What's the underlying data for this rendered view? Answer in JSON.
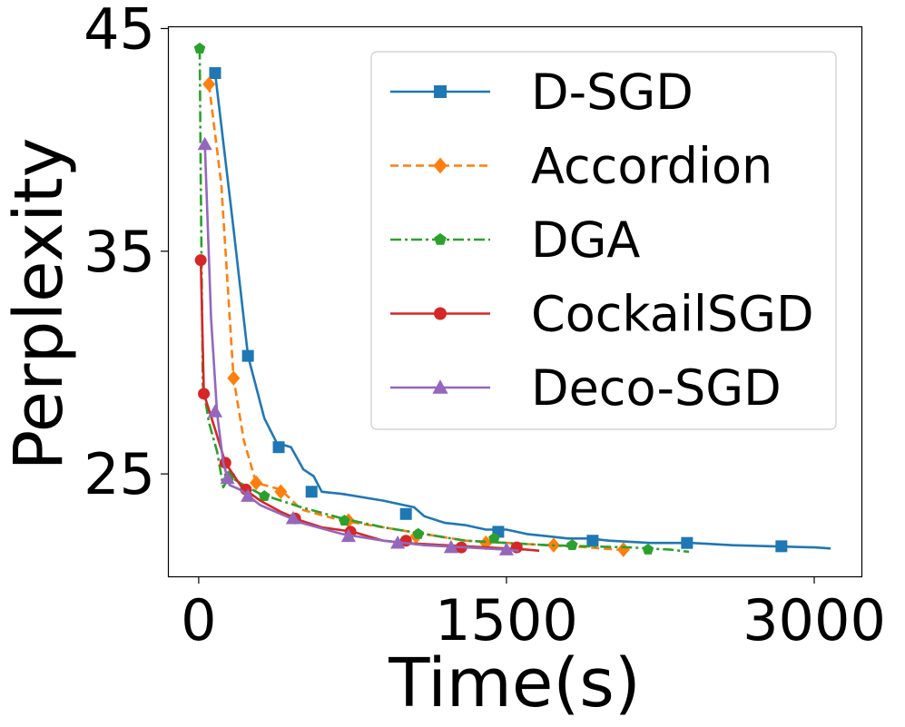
{
  "chart_data": {
    "type": "line",
    "xlabel": "Time(s)",
    "ylabel": "Perplexity",
    "xlim": [
      -150,
      3230
    ],
    "ylim": [
      20.4,
      45.1
    ],
    "xticks": [
      0,
      1500,
      3000
    ],
    "xtick_labels": [
      "0",
      "1500",
      "3000"
    ],
    "yticks": [
      25,
      35,
      45
    ],
    "ytick_labels": [
      "25",
      "35",
      "45"
    ],
    "grid": false,
    "legend_position": "top-right",
    "series": [
      {
        "name": "D-SGD",
        "color": "#1f77b4",
        "dash": "solid",
        "marker": "square",
        "line": [
          [
            80,
            43.0
          ],
          [
            170,
            36.0
          ],
          [
            240,
            30.3
          ],
          [
            320,
            27.5
          ],
          [
            380,
            26.4
          ],
          [
            450,
            26.2
          ],
          [
            510,
            25.2
          ],
          [
            560,
            24.9
          ],
          [
            600,
            24.2
          ],
          [
            700,
            24.1
          ],
          [
            900,
            23.8
          ],
          [
            1000,
            23.6
          ],
          [
            1050,
            23.5
          ],
          [
            1100,
            23.1
          ],
          [
            1200,
            22.8
          ],
          [
            1300,
            22.7
          ],
          [
            1400,
            22.5
          ],
          [
            1500,
            22.5
          ],
          [
            1600,
            22.3
          ],
          [
            1700,
            22.2
          ],
          [
            1800,
            22.1
          ],
          [
            1900,
            22.1
          ],
          [
            2000,
            22.0
          ],
          [
            2200,
            21.9
          ],
          [
            2400,
            21.9
          ],
          [
            2600,
            21.8
          ],
          [
            2800,
            21.75
          ],
          [
            3000,
            21.7
          ],
          [
            3080,
            21.65
          ]
        ],
        "markers": [
          [
            80,
            43.0
          ],
          [
            240,
            30.3
          ],
          [
            390,
            26.2
          ],
          [
            550,
            24.2
          ],
          [
            1010,
            23.2
          ],
          [
            1460,
            22.4
          ],
          [
            1920,
            22.0
          ],
          [
            2380,
            21.9
          ],
          [
            2840,
            21.75
          ]
        ]
      },
      {
        "name": "Accordion",
        "color": "#ff7f0e",
        "dash": "dashed",
        "marker": "diamond",
        "line": [
          [
            50,
            42.5
          ],
          [
            110,
            38.0
          ],
          [
            170,
            29.3
          ],
          [
            220,
            26.5
          ],
          [
            280,
            24.6
          ],
          [
            400,
            24.3
          ],
          [
            500,
            23.4
          ],
          [
            700,
            22.9
          ],
          [
            900,
            22.6
          ],
          [
            1100,
            22.3
          ],
          [
            1300,
            22.0
          ],
          [
            1500,
            21.9
          ],
          [
            1700,
            21.8
          ],
          [
            1900,
            21.7
          ],
          [
            2040,
            21.6
          ],
          [
            2100,
            21.6
          ]
        ],
        "markers": [
          [
            50,
            42.5
          ],
          [
            170,
            29.3
          ],
          [
            280,
            24.6
          ],
          [
            400,
            24.2
          ],
          [
            730,
            22.9
          ],
          [
            1060,
            22.2
          ],
          [
            1400,
            21.9
          ],
          [
            1730,
            21.8
          ],
          [
            2070,
            21.6
          ]
        ]
      },
      {
        "name": "DGA",
        "color": "#2ca02c",
        "dash": "dashdot",
        "marker": "pentagon",
        "line": [
          [
            5,
            44.1
          ],
          [
            10,
            38.0
          ],
          [
            20,
            29.0
          ],
          [
            50,
            27.3
          ],
          [
            90,
            26.0
          ],
          [
            120,
            24.4
          ],
          [
            150,
            24.9
          ],
          [
            200,
            24.6
          ],
          [
            300,
            24.1
          ],
          [
            500,
            23.5
          ],
          [
            700,
            23.0
          ],
          [
            900,
            22.6
          ],
          [
            1100,
            22.3
          ],
          [
            1300,
            22.0
          ],
          [
            1500,
            21.9
          ],
          [
            1700,
            21.8
          ],
          [
            1900,
            21.75
          ],
          [
            2100,
            21.7
          ],
          [
            2300,
            21.6
          ],
          [
            2390,
            21.5
          ]
        ],
        "markers": [
          [
            5,
            44.1
          ],
          [
            150,
            24.9
          ],
          [
            320,
            24.0
          ],
          [
            710,
            22.9
          ],
          [
            1070,
            22.3
          ],
          [
            1440,
            22.1
          ],
          [
            1820,
            21.8
          ],
          [
            2190,
            21.6
          ]
        ]
      },
      {
        "name": "CockailSGD",
        "color": "#d62728",
        "dash": "solid",
        "marker": "circle",
        "line": [
          [
            10,
            34.6
          ],
          [
            25,
            28.6
          ],
          [
            80,
            27.0
          ],
          [
            130,
            25.5
          ],
          [
            210,
            24.4
          ],
          [
            300,
            23.8
          ],
          [
            400,
            23.3
          ],
          [
            500,
            22.9
          ],
          [
            600,
            22.6
          ],
          [
            750,
            22.4
          ],
          [
            900,
            22.0
          ],
          [
            1000,
            21.9
          ],
          [
            1200,
            21.8
          ],
          [
            1400,
            21.7
          ],
          [
            1600,
            21.6
          ],
          [
            1660,
            21.55
          ]
        ],
        "markers": [
          [
            10,
            34.6
          ],
          [
            25,
            28.6
          ],
          [
            130,
            25.5
          ],
          [
            230,
            24.3
          ],
          [
            470,
            23.0
          ],
          [
            740,
            22.4
          ],
          [
            1010,
            22.0
          ],
          [
            1280,
            21.7
          ],
          [
            1550,
            21.7
          ]
        ]
      },
      {
        "name": "Deco-SGD",
        "color": "#9467bd",
        "dash": "solid",
        "marker": "triangle",
        "line": [
          [
            30,
            39.8
          ],
          [
            60,
            32.0
          ],
          [
            90,
            27.7
          ],
          [
            120,
            25.5
          ],
          [
            150,
            24.5
          ],
          [
            200,
            24.3
          ],
          [
            300,
            23.6
          ],
          [
            400,
            23.2
          ],
          [
            500,
            22.8
          ],
          [
            700,
            22.3
          ],
          [
            900,
            22.0
          ],
          [
            1100,
            21.8
          ],
          [
            1300,
            21.7
          ],
          [
            1500,
            21.6
          ],
          [
            1560,
            21.55
          ]
        ],
        "markers": [
          [
            30,
            39.8
          ],
          [
            80,
            27.8
          ],
          [
            140,
            24.8
          ],
          [
            240,
            24.0
          ],
          [
            460,
            23.0
          ],
          [
            730,
            22.2
          ],
          [
            970,
            21.9
          ],
          [
            1230,
            21.7
          ],
          [
            1500,
            21.6
          ]
        ]
      }
    ]
  }
}
